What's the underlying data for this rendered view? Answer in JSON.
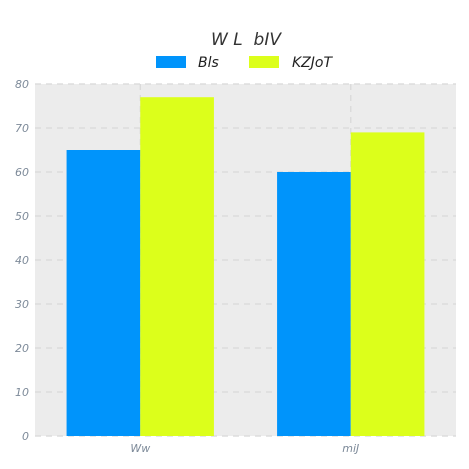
{
  "chart_data": {
    "type": "bar",
    "title": "W L  bIV",
    "xlabel": "",
    "ylabel": "",
    "categories": [
      "Ww",
      "miJ"
    ],
    "series": [
      {
        "name": "Bls",
        "values": [
          65,
          60
        ],
        "color": "#0094fb"
      },
      {
        "name": "KZJoT",
        "values": [
          77,
          69
        ],
        "color": "#dcff1b"
      }
    ],
    "ylim": [
      0,
      80
    ],
    "yticks": [
      0,
      10,
      20,
      30,
      40,
      50,
      60,
      70,
      80
    ],
    "grid": true,
    "legend_position": "top-center",
    "colors": {
      "plot_background": "#ececec",
      "grid": "#d8d8d8",
      "tick_text": "#7d8a99"
    }
  }
}
